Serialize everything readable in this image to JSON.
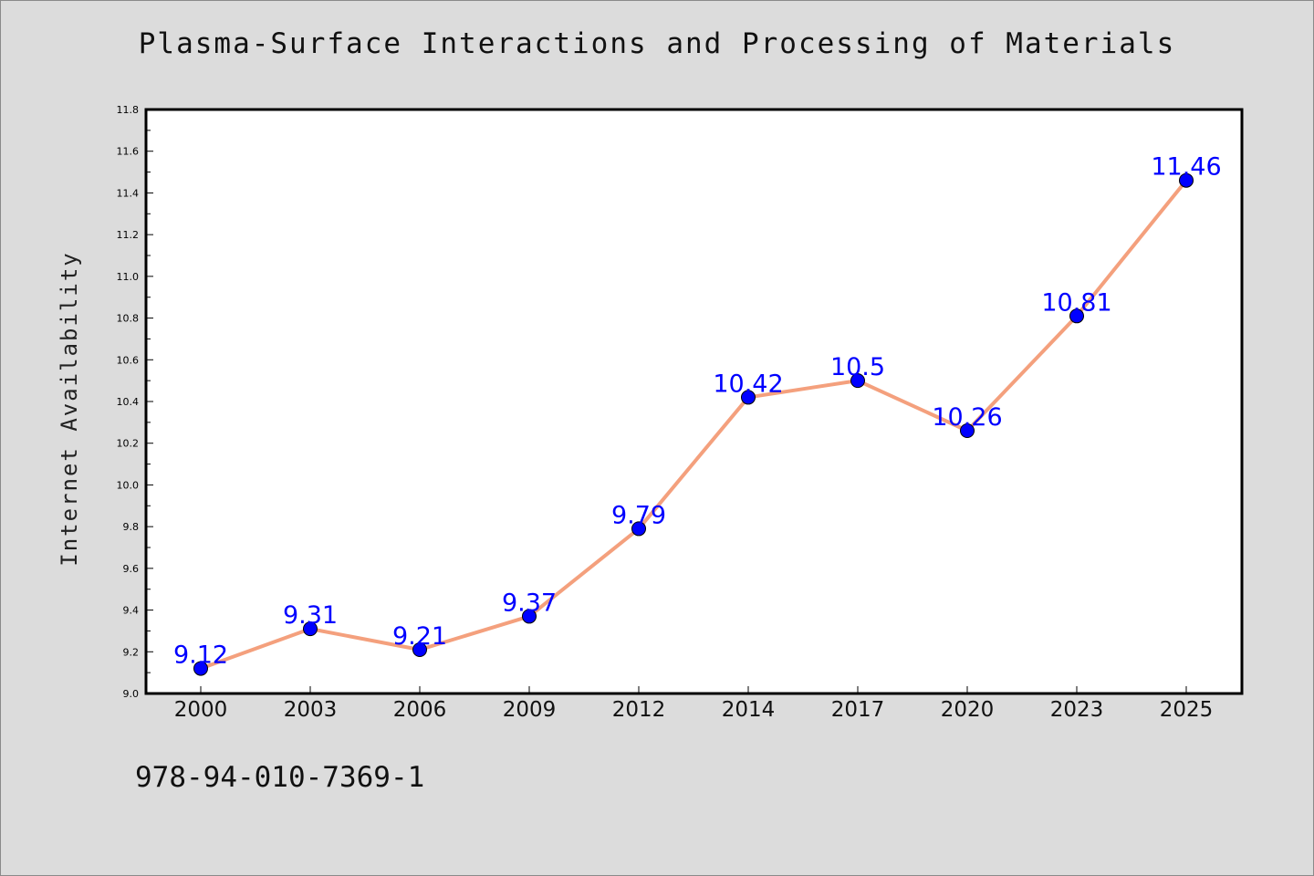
{
  "title": "Plasma-Surface Interactions and Processing of Materials",
  "footer_text": "978-94-010-7369-1",
  "colors": {
    "background": "#dcdcdc",
    "plot_background": "#ffffff",
    "line": "#f4a07d",
    "marker": "#0000ff",
    "data_label": "#0000ff"
  },
  "chart_data": {
    "type": "line",
    "title": "Plasma-Surface Interactions and Processing of Materials",
    "xlabel": "",
    "ylabel": "Internet Availability",
    "categories": [
      "2000",
      "2003",
      "2006",
      "2009",
      "2012",
      "2014",
      "2017",
      "2020",
      "2023",
      "2025"
    ],
    "series": [
      {
        "values": [
          9.12,
          9.31,
          9.21,
          9.37,
          9.79,
          10.42,
          10.5,
          10.26,
          10.81,
          11.46
        ]
      }
    ],
    "data_labels": [
      "9.12",
      "9.31",
      "9.21",
      "9.37",
      "9.79",
      "10.42",
      "10.5",
      "10.26",
      "10.81",
      "11.46"
    ],
    "ylim": [
      9.0,
      11.8
    ],
    "y_ticks": [
      "9.0",
      "9.2",
      "9.4",
      "9.6",
      "9.8",
      "10.0",
      "10.2",
      "10.4",
      "10.6",
      "10.8",
      "11.0",
      "11.2",
      "11.4",
      "11.6",
      "11.8"
    ],
    "y_tick_step": 0.2,
    "y_minor_step": 0.1,
    "grid": false,
    "legend": "none"
  }
}
